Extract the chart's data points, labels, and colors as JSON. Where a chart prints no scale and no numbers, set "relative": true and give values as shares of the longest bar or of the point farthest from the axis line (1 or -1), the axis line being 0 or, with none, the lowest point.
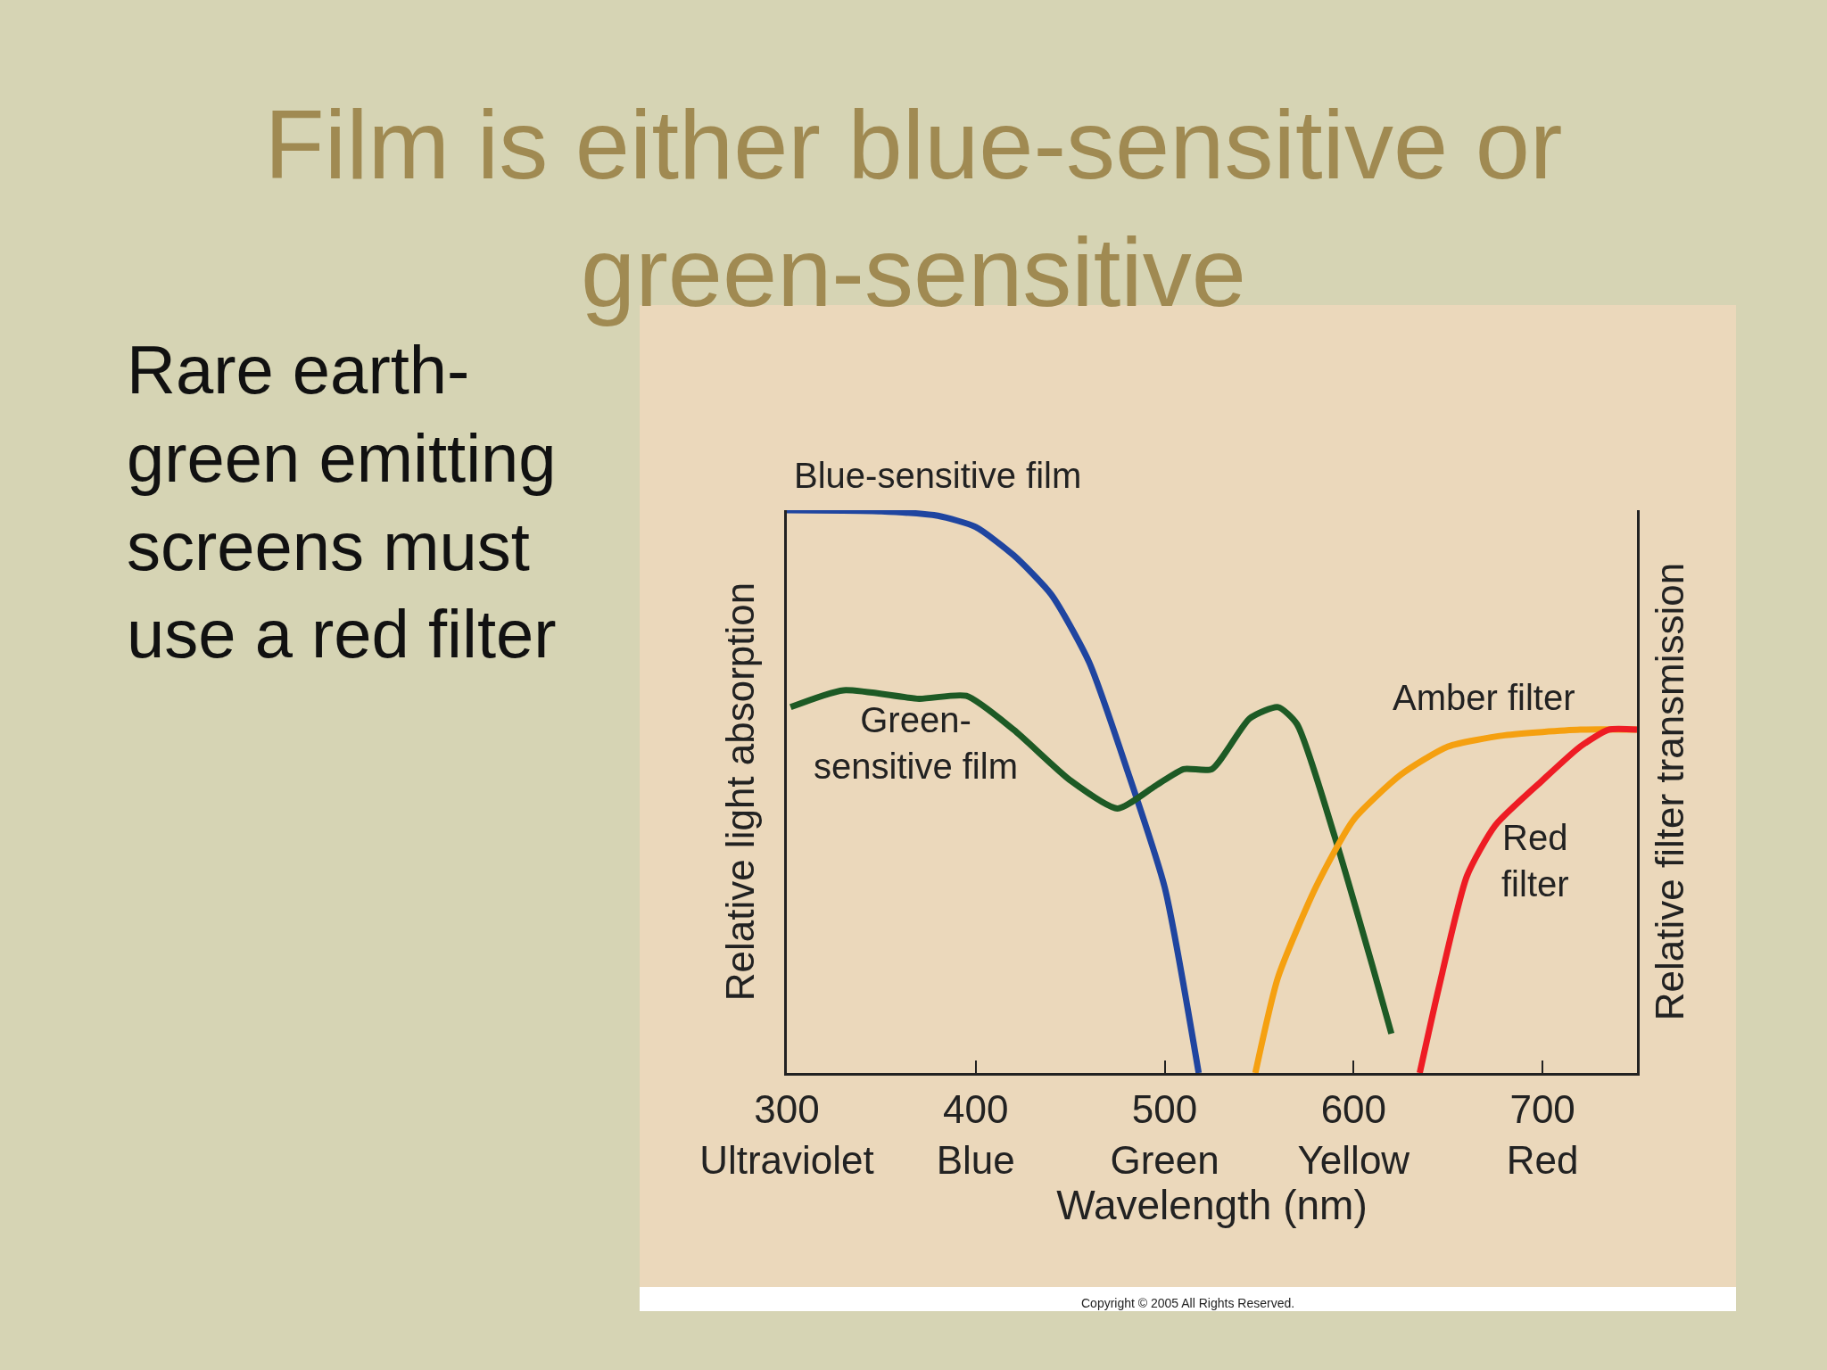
{
  "chart_data": {
    "type": "line",
    "title": "Film is either blue-sensitive or\ngreen-sensitive",
    "relative": true,
    "xlabel": "Wavelength (nm)",
    "ylabel": "Relative light absorption",
    "y2label": "Relative filter transmission",
    "xlim": [
      300,
      750
    ],
    "xticks": [
      {
        "value": 300,
        "label": "300\nUltraviolet"
      },
      {
        "value": 400,
        "label": "400\nBlue"
      },
      {
        "value": 500,
        "label": "500\nGreen"
      },
      {
        "value": 600,
        "label": "600\nYellow"
      },
      {
        "value": 700,
        "label": "700\nRed"
      }
    ],
    "series": [
      {
        "name": "Blue-sensitive film",
        "color": "#1f45a0",
        "x": [
          300,
          350,
          380,
          400,
          420,
          440,
          460,
          480,
          500,
          518
        ],
        "values": [
          1.0,
          0.998,
          0.99,
          0.97,
          0.92,
          0.85,
          0.73,
          0.54,
          0.33,
          0.0
        ]
      },
      {
        "name": "Green-\nsensitive film",
        "color": "#1d5a25",
        "x": [
          302,
          330,
          370,
          395,
          420,
          450,
          475,
          495,
          510,
          525,
          545,
          560,
          570,
          590,
          610,
          620
        ],
        "values": [
          0.65,
          0.68,
          0.665,
          0.67,
          0.61,
          0.52,
          0.47,
          0.51,
          0.54,
          0.54,
          0.63,
          0.65,
          0.62,
          0.42,
          0.19,
          0.07
        ]
      },
      {
        "name": "Amber filter",
        "color": "#f5a010",
        "axis": "y2",
        "x": [
          548,
          560,
          580,
          600,
          625,
          650,
          680,
          720,
          750
        ],
        "values": [
          0.0,
          0.17,
          0.33,
          0.45,
          0.53,
          0.58,
          0.6,
          0.61,
          0.61
        ]
      },
      {
        "name": "Red\nfilter",
        "color": "#ee1c24",
        "axis": "y2",
        "x": [
          635,
          645,
          660,
          675,
          700,
          720,
          735,
          750
        ],
        "values": [
          0.0,
          0.15,
          0.35,
          0.44,
          0.52,
          0.58,
          0.61,
          0.61
        ]
      }
    ],
    "annotations": [
      "Rare earth-\ngreen emitting\nscreens must\nuse a red filter",
      "Copyright © 2005 All Rights Reserved."
    ],
    "line_style": "solid",
    "marker": "none",
    "grid": false,
    "legend": false
  }
}
